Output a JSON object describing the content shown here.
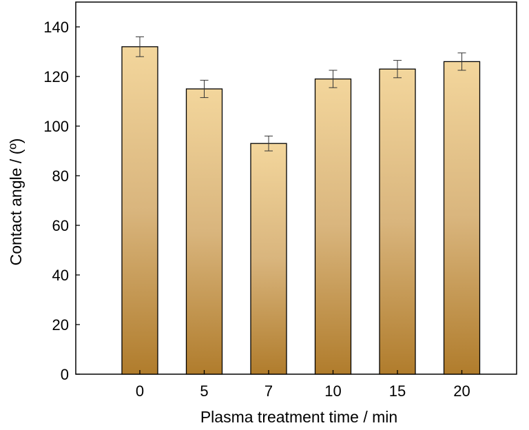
{
  "chart_data": {
    "type": "bar",
    "title": "",
    "xlabel": "Plasma treatment time / min",
    "ylabel": "Contact angle / (º)",
    "categories": [
      "0",
      "5",
      "7",
      "10",
      "15",
      "20"
    ],
    "values": [
      132,
      115,
      93,
      119,
      123,
      126
    ],
    "errors": [
      4,
      3.5,
      3,
      3.5,
      3.5,
      3.5
    ],
    "ylim": [
      0,
      150
    ],
    "yticks": [
      0,
      20,
      40,
      60,
      80,
      100,
      120,
      140
    ],
    "grid": false,
    "legend": "none",
    "colors": {
      "bar_top": "#f3d69c",
      "bar_mid": "#d9b57d",
      "bar_bottom": "#b07c2c",
      "bar_stroke": "#000000",
      "axis": "#000000"
    }
  }
}
